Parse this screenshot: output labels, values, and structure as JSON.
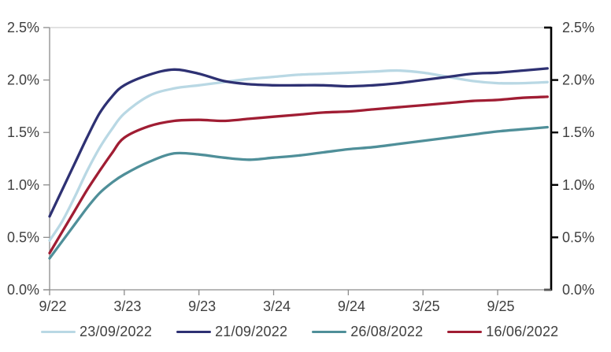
{
  "chart_data": {
    "type": "line",
    "title": "",
    "xlabel": "",
    "ylabel": "",
    "x_unit": "months since Sep 2022",
    "x_range": [
      0,
      40.3
    ],
    "y_range": [
      0,
      2.5
    ],
    "grid": "top border line only",
    "y_tick_values": [
      0,
      0.5,
      1.0,
      1.5,
      2.0,
      2.5
    ],
    "y_tick_labels": [
      "0.0%",
      "0.5%",
      "1.0%",
      "1.5%",
      "2.0%",
      "2.5%"
    ],
    "x_ticks": [
      {
        "label": "9/22",
        "m": 0
      },
      {
        "label": "3/23",
        "m": 6
      },
      {
        "label": "9/23",
        "m": 12
      },
      {
        "label": "3/24",
        "m": 18
      },
      {
        "label": "9/24",
        "m": 24
      },
      {
        "label": "3/25",
        "m": 30
      },
      {
        "label": "9/25",
        "m": 36
      }
    ],
    "x": [
      0,
      1,
      2,
      3,
      4,
      5,
      6,
      8,
      10,
      12,
      14,
      16,
      18,
      20,
      22,
      24,
      26,
      28,
      30,
      32,
      34,
      36,
      38,
      40
    ],
    "series": [
      {
        "name": "23/09/2022",
        "color": "#b9d8e4",
        "values": [
          0.47,
          0.65,
          0.88,
          1.13,
          1.35,
          1.53,
          1.68,
          1.85,
          1.92,
          1.95,
          1.98,
          2.01,
          2.03,
          2.05,
          2.06,
          2.07,
          2.08,
          2.09,
          2.07,
          2.03,
          1.99,
          1.97,
          1.97,
          1.98
        ]
      },
      {
        "name": "21/09/2022",
        "color": "#2e3173",
        "values": [
          0.7,
          0.95,
          1.2,
          1.45,
          1.68,
          1.84,
          1.95,
          2.05,
          2.1,
          2.06,
          1.99,
          1.96,
          1.95,
          1.95,
          1.95,
          1.94,
          1.95,
          1.97,
          2.0,
          2.03,
          2.06,
          2.07,
          2.09,
          2.11
        ]
      },
      {
        "name": "26/08/2022",
        "color": "#4f8f99",
        "values": [
          0.3,
          0.46,
          0.62,
          0.78,
          0.92,
          1.02,
          1.1,
          1.22,
          1.3,
          1.29,
          1.26,
          1.24,
          1.26,
          1.28,
          1.31,
          1.34,
          1.36,
          1.39,
          1.42,
          1.45,
          1.48,
          1.51,
          1.53,
          1.55
        ]
      },
      {
        "name": "16/06/2022",
        "color": "#a01d33",
        "values": [
          0.35,
          0.55,
          0.75,
          0.95,
          1.13,
          1.3,
          1.45,
          1.56,
          1.61,
          1.62,
          1.61,
          1.63,
          1.65,
          1.67,
          1.69,
          1.7,
          1.72,
          1.74,
          1.76,
          1.78,
          1.8,
          1.81,
          1.83,
          1.84
        ]
      }
    ],
    "legend": {
      "position": "bottom",
      "entries": [
        "23/09/2022",
        "21/09/2022",
        "26/08/2022",
        "16/06/2022"
      ]
    }
  },
  "style": {
    "axis_color": "#8c8c8c",
    "right_axis_color": "#000000",
    "top_gridline_color": "#d9d9d9",
    "tick_text_color": "#3f3f3f",
    "background": "#ffffff"
  }
}
